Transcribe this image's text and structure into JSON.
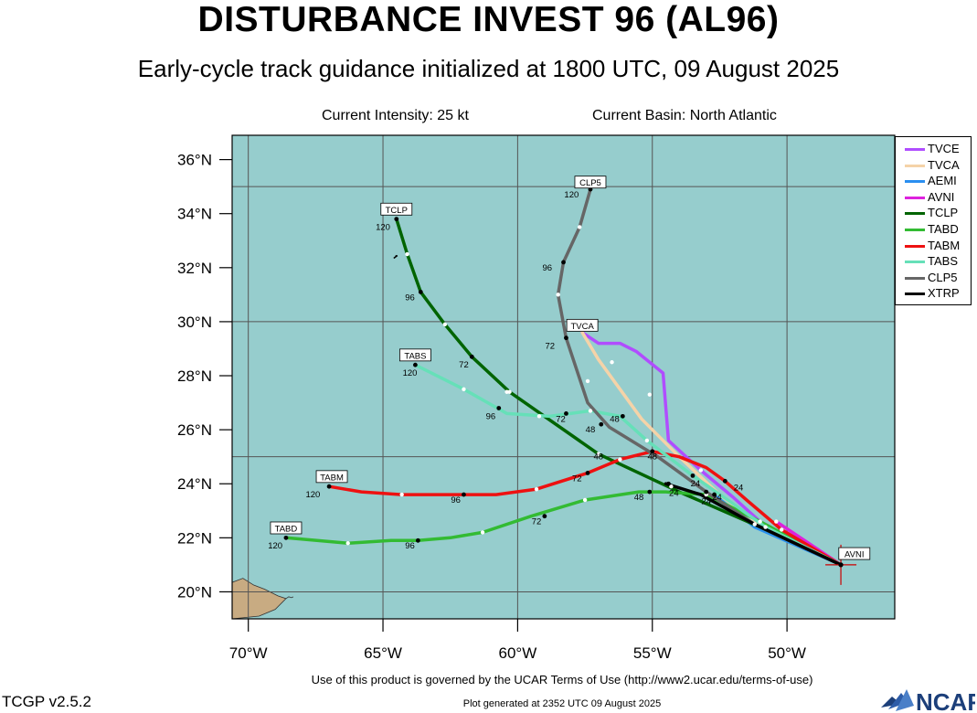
{
  "header": {
    "title": "DISTURBANCE INVEST 96 (AL96)",
    "subtitle": "Early-cycle track guidance initialized at 1800 UTC, 09 August 2025",
    "intensity": "Current Intensity: 25 kt",
    "basin": "Current Basin: North Atlantic"
  },
  "footer": {
    "terms": "Use of this product is governed by the UCAR Terms of Use (http://www2.ucar.edu/terms-of-use)",
    "generated": "Plot generated at 2352 UTC   09 August 2025",
    "version": "TCGP v2.5.2",
    "logo": "NCAR"
  },
  "chart_data": {
    "type": "map",
    "lon_range": [
      -70.6,
      -46.0
    ],
    "lat_range": [
      19.0,
      36.9
    ],
    "lon_ticks": [
      {
        "lon": -70,
        "label": "70°W"
      },
      {
        "lon": -65,
        "label": "65°W"
      },
      {
        "lon": -60,
        "label": "60°W"
      },
      {
        "lon": -55,
        "label": "55°W"
      },
      {
        "lon": -50,
        "label": "50°W"
      }
    ],
    "lat_ticks": [
      {
        "lat": 20,
        "label": "20°N"
      },
      {
        "lat": 22,
        "label": "22°N"
      },
      {
        "lat": 24,
        "label": "24°N"
      },
      {
        "lat": 26,
        "label": "26°N"
      },
      {
        "lat": 28,
        "label": "28°N"
      },
      {
        "lat": 30,
        "label": "30°N"
      },
      {
        "lat": 32,
        "label": "32°N"
      },
      {
        "lat": 34,
        "label": "34°N"
      },
      {
        "lat": 36,
        "label": "36°N"
      }
    ],
    "grid": true,
    "grid_lons": [
      -70,
      -65,
      -60,
      -55,
      -50
    ],
    "grid_lats": [
      20,
      25,
      30,
      35
    ],
    "colors": {
      "ocean": "#96cdcd",
      "land": "#c8ab82",
      "grid": "#555555",
      "current_position": "#cc0000"
    },
    "current_position": {
      "lon": -48.0,
      "lat": 21.0
    },
    "legend_position": "right",
    "series": [
      {
        "name": "TVCE",
        "color": "#b04dff",
        "label": "",
        "label_at": null,
        "points": [
          [
            -48.0,
            21.0
          ],
          [
            -51.0,
            22.6
          ],
          [
            -52.0,
            23.5
          ],
          [
            -53.2,
            24.5
          ],
          [
            -54.4,
            25.6
          ],
          [
            -54.6,
            28.1
          ],
          [
            -55.6,
            28.9
          ],
          [
            -56.2,
            29.2
          ],
          [
            -57.0,
            29.2
          ],
          [
            -57.6,
            29.6
          ]
        ],
        "markers": [],
        "tick_labels": []
      },
      {
        "name": "TVCA",
        "color": "#f5d3a8",
        "label": "TVCA",
        "label_at": [
          -57.6,
          29.85
        ],
        "points": [
          [
            -48.0,
            21.0
          ],
          [
            -51.0,
            22.5
          ],
          [
            -52.5,
            23.6
          ],
          [
            -54.0,
            25.0
          ],
          [
            -55.4,
            26.4
          ],
          [
            -57.0,
            28.6
          ],
          [
            -57.6,
            29.6
          ]
        ],
        "markers": [
          [
            -55.1,
            27.3
          ],
          [
            -56.5,
            28.5
          ]
        ],
        "tick_labels": []
      },
      {
        "name": "AEMI",
        "color": "#2a8ff0",
        "label": "",
        "label_at": null,
        "points": [
          [
            -48.0,
            21.0
          ],
          [
            -51.2,
            22.4
          ],
          [
            -52.6,
            23.5
          ]
        ],
        "markers": [],
        "tick_labels": []
      },
      {
        "name": "AVNI",
        "color": "#dd22dd",
        "label": "AVNI",
        "label_at": [
          -47.5,
          21.4
        ],
        "points": [
          [
            -48.0,
            21.0
          ],
          [
            -50.4,
            22.6
          ]
        ],
        "markers": [
          [
            -50.4,
            22.6
          ]
        ],
        "tick_labels": []
      },
      {
        "name": "TCLP",
        "color": "#006400",
        "label": "TCLP",
        "label_at": [
          -64.5,
          34.15
        ],
        "points": [
          [
            -48.0,
            21.0
          ],
          [
            -51.0,
            22.4
          ],
          [
            -54.0,
            23.7
          ],
          [
            -57.0,
            25.1
          ],
          [
            -60.3,
            27.4
          ],
          [
            -61.7,
            28.7
          ],
          [
            -62.7,
            29.9
          ],
          [
            -63.6,
            31.1
          ],
          [
            -64.1,
            32.5
          ],
          [
            -64.5,
            33.8
          ]
        ],
        "markers": [
          [
            -54.3,
            23.9
          ],
          [
            -57.0,
            25.1
          ],
          [
            -60.3,
            27.4
          ],
          [
            -62.7,
            29.9
          ],
          [
            -64.1,
            32.5
          ]
        ],
        "tick_labels": [
          {
            "text": "24",
            "lon": -54.2,
            "lat": 23.55,
            "dot": [
              -54.4,
              24.0
            ]
          },
          {
            "text": "48",
            "lon": -57.0,
            "lat": 24.9,
            "dot": null
          },
          {
            "text": "72",
            "lon": -62.0,
            "lat": 28.3,
            "dot": [
              -61.7,
              28.7
            ]
          },
          {
            "text": "96",
            "lon": -64.0,
            "lat": 30.8,
            "dot": [
              -63.6,
              31.1
            ]
          },
          {
            "text": "120",
            "lon": -65.0,
            "lat": 33.4,
            "dot": [
              -64.5,
              33.8
            ]
          }
        ]
      },
      {
        "name": "TABD",
        "color": "#33bb33",
        "label": "TABD",
        "label_at": [
          -68.6,
          22.35
        ],
        "points": [
          [
            -48.0,
            21.0
          ],
          [
            -51.0,
            22.6
          ],
          [
            -53.0,
            23.6
          ],
          [
            -54.5,
            23.7
          ],
          [
            -55.5,
            23.7
          ],
          [
            -57.5,
            23.4
          ],
          [
            -59.5,
            22.8
          ],
          [
            -61.3,
            22.2
          ],
          [
            -62.5,
            22.0
          ],
          [
            -63.7,
            21.9
          ],
          [
            -64.7,
            21.9
          ],
          [
            -66.3,
            21.8
          ],
          [
            -68.6,
            22.0
          ]
        ],
        "markers": [
          [
            -51.0,
            22.6
          ],
          [
            -53.0,
            23.6
          ],
          [
            -57.5,
            23.4
          ],
          [
            -61.3,
            22.2
          ],
          [
            -66.3,
            21.8
          ]
        ],
        "tick_labels": [
          {
            "text": "24",
            "lon": -52.6,
            "lat": 23.4,
            "dot": [
              -52.7,
              23.6
            ]
          },
          {
            "text": "48",
            "lon": -55.5,
            "lat": 23.4,
            "dot": [
              -55.1,
              23.7
            ]
          },
          {
            "text": "72",
            "lon": -59.3,
            "lat": 22.5,
            "dot": [
              -59.0,
              22.8
            ]
          },
          {
            "text": "96",
            "lon": -64.0,
            "lat": 21.6,
            "dot": [
              -63.7,
              21.9
            ]
          },
          {
            "text": "120",
            "lon": -69.0,
            "lat": 21.6,
            "dot": [
              -68.6,
              22.0
            ]
          }
        ]
      },
      {
        "name": "TABM",
        "color": "#ee1111",
        "label": "TABM",
        "label_at": [
          -66.9,
          24.25
        ],
        "points": [
          [
            -48.0,
            21.0
          ],
          [
            -50.2,
            22.3
          ],
          [
            -51.5,
            23.4
          ],
          [
            -52.3,
            24.1
          ],
          [
            -53.0,
            24.6
          ],
          [
            -54.0,
            25.0
          ],
          [
            -55.0,
            25.2
          ],
          [
            -56.2,
            24.9
          ],
          [
            -57.4,
            24.4
          ],
          [
            -59.3,
            23.8
          ],
          [
            -60.8,
            23.6
          ],
          [
            -62.0,
            23.6
          ],
          [
            -64.3,
            23.6
          ],
          [
            -65.8,
            23.7
          ],
          [
            -67.0,
            23.9
          ]
        ],
        "markers": [
          [
            -50.2,
            22.3
          ],
          [
            -53.2,
            24.5
          ],
          [
            -56.2,
            24.9
          ],
          [
            -59.3,
            23.8
          ],
          [
            -64.3,
            23.6
          ]
        ],
        "tick_labels": [
          {
            "text": "24",
            "lon": -51.8,
            "lat": 23.75,
            "dot": [
              -52.3,
              24.1
            ]
          },
          {
            "text": "48",
            "lon": -55.0,
            "lat": 24.9,
            "dot": [
              -55.0,
              25.2
            ]
          },
          {
            "text": "72",
            "lon": -57.8,
            "lat": 24.1,
            "dot": [
              -57.4,
              24.4
            ]
          },
          {
            "text": "96",
            "lon": -62.3,
            "lat": 23.3,
            "dot": [
              -62.0,
              23.6
            ]
          },
          {
            "text": "120",
            "lon": -67.6,
            "lat": 23.5,
            "dot": [
              -67.0,
              23.9
            ]
          }
        ]
      },
      {
        "name": "TABS",
        "color": "#66e0b8",
        "label": "TABS",
        "label_at": [
          -63.8,
          28.75
        ],
        "points": [
          [
            -48.0,
            21.0
          ],
          [
            -50.8,
            22.4
          ],
          [
            -52.2,
            23.4
          ],
          [
            -53.5,
            24.3
          ],
          [
            -55.2,
            25.6
          ],
          [
            -56.2,
            26.5
          ],
          [
            -57.3,
            26.7
          ],
          [
            -58.8,
            26.5
          ],
          [
            -60.4,
            26.6
          ],
          [
            -62.0,
            27.5
          ],
          [
            -63.8,
            28.4
          ]
        ],
        "markers": [
          [
            -50.8,
            22.4
          ],
          [
            -53.5,
            24.3
          ],
          [
            -55.2,
            25.6
          ],
          [
            -57.3,
            26.7
          ],
          [
            -59.2,
            26.5
          ],
          [
            -60.4,
            27.4
          ],
          [
            -62.0,
            27.5
          ]
        ],
        "tick_labels": [
          {
            "text": "24",
            "lon": -53.4,
            "lat": 23.9,
            "dot": [
              -53.5,
              24.3
            ]
          },
          {
            "text": "48",
            "lon": -56.4,
            "lat": 26.3,
            "dot": [
              -56.1,
              26.5
            ]
          },
          {
            "text": "72",
            "lon": -58.4,
            "lat": 26.3,
            "dot": [
              -58.2,
              26.6
            ]
          },
          {
            "text": "96",
            "lon": -61.0,
            "lat": 26.4,
            "dot": [
              -60.7,
              26.8
            ]
          },
          {
            "text": "120",
            "lon": -64.0,
            "lat": 28.0,
            "dot": [
              -63.8,
              28.4
            ]
          }
        ]
      },
      {
        "name": "CLP5",
        "color": "#666666",
        "label": "CLP5",
        "label_at": [
          -57.3,
          35.15
        ],
        "points": [
          [
            -48.0,
            21.0
          ],
          [
            -51.2,
            22.5
          ],
          [
            -53.0,
            23.7
          ],
          [
            -54.8,
            25.0
          ],
          [
            -56.6,
            26.1
          ],
          [
            -57.4,
            27.0
          ],
          [
            -58.2,
            29.4
          ],
          [
            -58.5,
            31.0
          ],
          [
            -58.3,
            32.2
          ],
          [
            -57.7,
            33.5
          ],
          [
            -57.3,
            34.9
          ]
        ],
        "markers": [
          [
            -51.2,
            22.5
          ],
          [
            -57.4,
            27.8
          ],
          [
            -58.5,
            31.0
          ],
          [
            -57.7,
            33.5
          ]
        ],
        "tick_labels": [
          {
            "text": "24",
            "lon": -53.0,
            "lat": 23.25,
            "dot": [
              -53.0,
              23.7
            ]
          },
          {
            "text": "48",
            "lon": -57.3,
            "lat": 25.9,
            "dot": [
              -56.9,
              26.2
            ]
          },
          {
            "text": "72",
            "lon": -58.8,
            "lat": 29.0,
            "dot": [
              -58.2,
              29.4
            ]
          },
          {
            "text": "96",
            "lon": -58.9,
            "lat": 31.9,
            "dot": [
              -58.3,
              32.2
            ]
          },
          {
            "text": "120",
            "lon": -58.0,
            "lat": 34.6,
            "dot": [
              -57.3,
              34.9
            ]
          }
        ]
      },
      {
        "name": "XTRP",
        "color": "#000000",
        "label": "",
        "label_at": null,
        "points": [
          [
            -48.0,
            21.0
          ],
          [
            -51.2,
            22.5
          ],
          [
            -53.2,
            23.6
          ],
          [
            -54.5,
            24.0
          ]
        ],
        "markers": [],
        "tick_labels": []
      }
    ]
  }
}
